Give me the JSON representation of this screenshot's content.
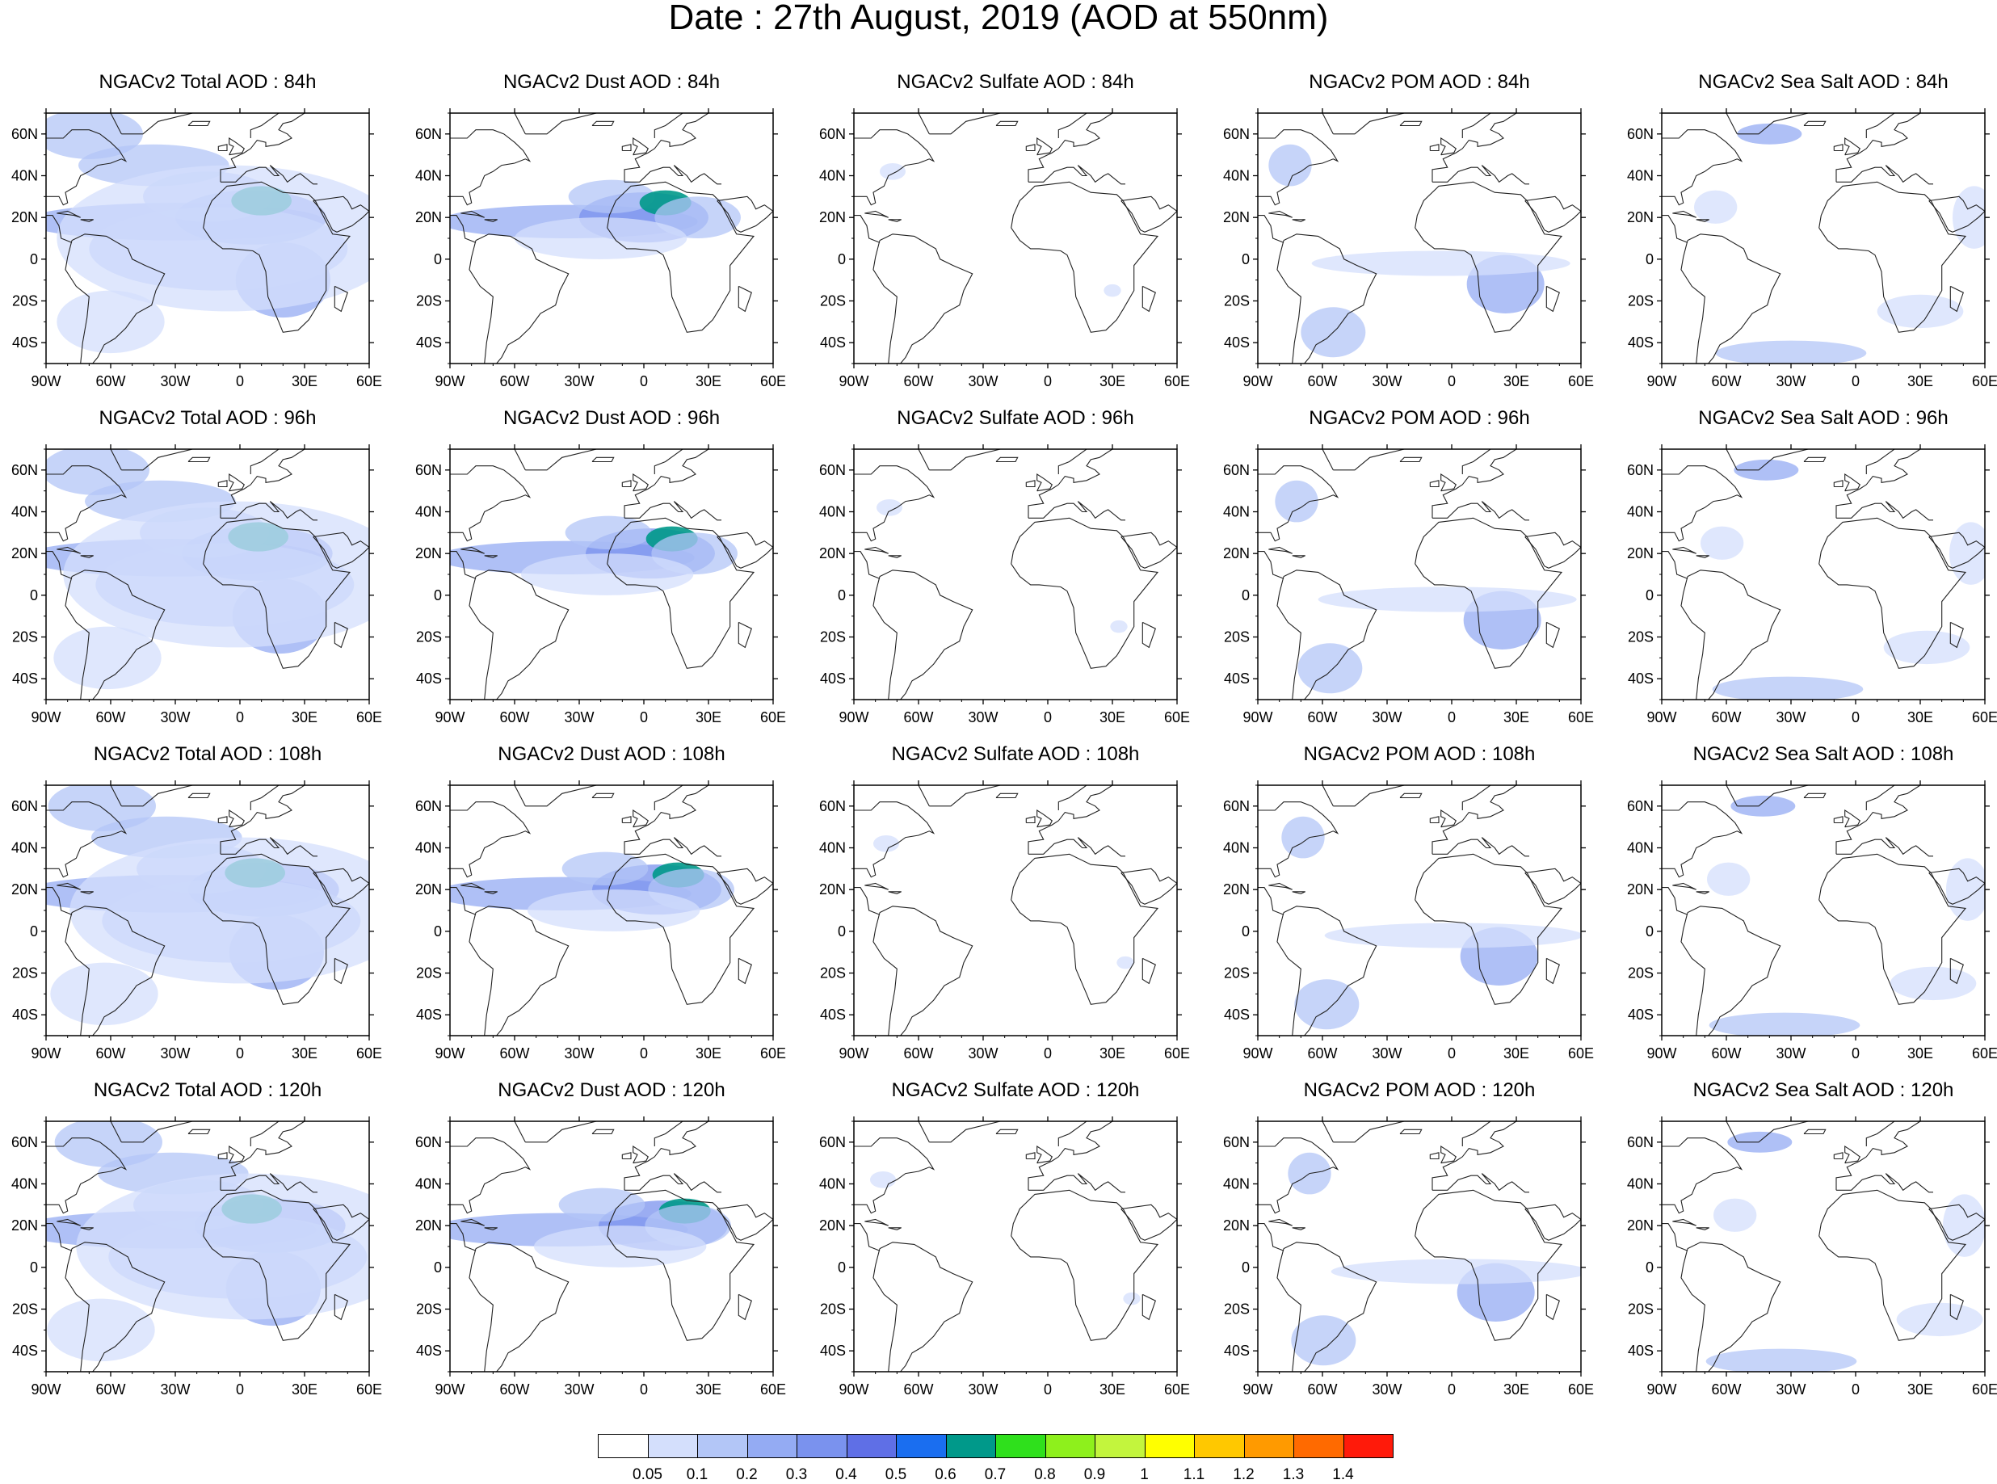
{
  "title": "Date : 27th August, 2019 (AOD at 550nm)",
  "axes": {
    "lat_ticks": [
      "60N",
      "40N",
      "20N",
      "0",
      "20S",
      "40S"
    ],
    "lon_ticks": [
      "90W",
      "60W",
      "30W",
      "0",
      "30E",
      "60E"
    ],
    "lat_range": [
      -50,
      70
    ],
    "lon_range": [
      -90,
      60
    ]
  },
  "panels": [
    [
      "NGACv2 Total AOD : 84h",
      "NGACv2 Dust AOD : 84h",
      "NGACv2 Sulfate AOD : 84h",
      "NGACv2 POM AOD : 84h",
      "NGACv2 Sea Salt AOD : 84h"
    ],
    [
      "NGACv2 Total AOD : 96h",
      "NGACv2 Dust AOD : 96h",
      "NGACv2 Sulfate AOD : 96h",
      "NGACv2 POM AOD : 96h",
      "NGACv2 Sea Salt AOD : 96h"
    ],
    [
      "NGACv2 Total AOD : 108h",
      "NGACv2 Dust AOD : 108h",
      "NGACv2 Sulfate AOD : 108h",
      "NGACv2 POM AOD : 108h",
      "NGACv2 Sea Salt AOD : 108h"
    ],
    [
      "NGACv2 Total AOD : 120h",
      "NGACv2 Dust AOD : 120h",
      "NGACv2 Sulfate AOD : 120h",
      "NGACv2 POM AOD : 120h",
      "NGACv2 Sea Salt  AOD : 120h"
    ]
  ],
  "colorbar": {
    "labels": [
      "0.05",
      "0.1",
      "0.2",
      "0.3",
      "0.4",
      "0.5",
      "0.6",
      "0.7",
      "0.8",
      "0.9",
      "1",
      "1.1",
      "1.2",
      "1.3",
      "1.4"
    ],
    "colors": [
      "#ffffff",
      "#d4dffc",
      "#b3c6f7",
      "#94abf3",
      "#7a92ee",
      "#5f6fe6",
      "#1a6ef0",
      "#00998a",
      "#2fe01c",
      "#8ef01c",
      "#c3f53d",
      "#ffff00",
      "#ffc800",
      "#ff9a00",
      "#ff6a00",
      "#ff1a0a"
    ]
  }
}
